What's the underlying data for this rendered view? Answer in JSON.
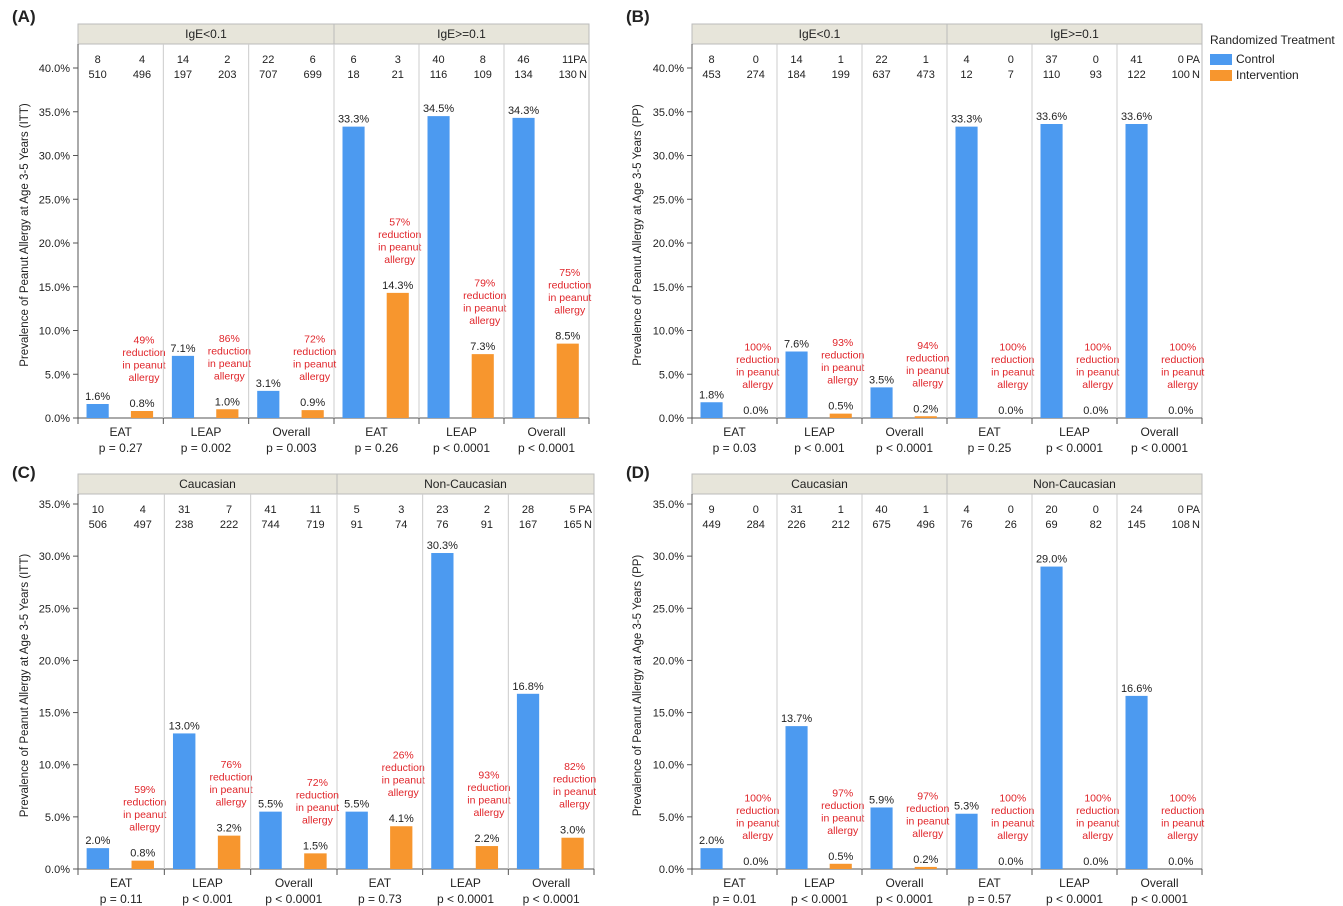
{
  "colors": {
    "control": "#4c9af0",
    "intervention": "#f7962e",
    "reduction_text": "#e0252a",
    "header_fill": "#e7e5da",
    "axis": "#555555",
    "divider": "#cccccc"
  },
  "legend": {
    "title": "Randomized Treatment",
    "items": [
      {
        "label": "Control",
        "color": "#4c9af0"
      },
      {
        "label": "Intervention",
        "color": "#f7962e"
      }
    ]
  },
  "chart_data": [
    {
      "panel": "(A)",
      "type": "bar",
      "ylabel": "Prevalence of Peanut Allergy at Age 3-5 Years (ITT)",
      "ylim": [
        0,
        40
      ],
      "yticks": [
        "0.0%",
        "5.0%",
        "10.0%",
        "15.0%",
        "20.0%",
        "25.0%",
        "30.0%",
        "35.0%",
        "40.0%"
      ],
      "count_labels": [
        "PA",
        "N"
      ],
      "groups": [
        {
          "header": "IgE<0.1",
          "subgroups": [
            {
              "name": "EAT",
              "p": "p = 0.27",
              "control": 1.6,
              "intervention": 0.8,
              "control_label": "1.6%",
              "intervention_label": "0.8%",
              "pa": [
                "8",
                "4"
              ],
              "n": [
                "510",
                "496"
              ],
              "reduction": [
                "49%",
                "reduction",
                "in peanut",
                "allergy"
              ]
            },
            {
              "name": "LEAP",
              "p": "p = 0.002",
              "control": 7.1,
              "intervention": 1.0,
              "control_label": "7.1%",
              "intervention_label": "1.0%",
              "pa": [
                "14",
                "2"
              ],
              "n": [
                "197",
                "203"
              ],
              "reduction": [
                "86%",
                "reduction",
                "in peanut",
                "allergy"
              ]
            },
            {
              "name": "Overall",
              "p": "p = 0.003",
              "control": 3.1,
              "intervention": 0.9,
              "control_label": "3.1%",
              "intervention_label": "0.9%",
              "pa": [
                "22",
                "6"
              ],
              "n": [
                "707",
                "699"
              ],
              "reduction": [
                "72%",
                "reduction",
                "in peanut",
                "allergy"
              ]
            }
          ]
        },
        {
          "header": "IgE>=0.1",
          "subgroups": [
            {
              "name": "EAT",
              "p": "p = 0.26",
              "control": 33.3,
              "intervention": 14.3,
              "control_label": "33.3%",
              "intervention_label": "14.3%",
              "pa": [
                "6",
                "3"
              ],
              "n": [
                "18",
                "21"
              ],
              "reduction": [
                "57%",
                "reduction",
                "in peanut",
                "allergy"
              ]
            },
            {
              "name": "LEAP",
              "p": "p < 0.0001",
              "control": 34.5,
              "intervention": 7.3,
              "control_label": "34.5%",
              "intervention_label": "7.3%",
              "pa": [
                "40",
                "8"
              ],
              "n": [
                "116",
                "109"
              ],
              "reduction": [
                "79%",
                "reduction",
                "in peanut",
                "allergy"
              ]
            },
            {
              "name": "Overall",
              "p": "p < 0.0001",
              "control": 34.3,
              "intervention": 8.5,
              "control_label": "34.3%",
              "intervention_label": "8.5%",
              "pa": [
                "46",
                "11"
              ],
              "n": [
                "134",
                "130"
              ],
              "reduction": [
                "75%",
                "reduction",
                "in peanut",
                "allergy"
              ]
            }
          ]
        }
      ]
    },
    {
      "panel": "(B)",
      "type": "bar",
      "ylabel": "Prevalence of Peanut Allergy at Age 3-5 Years (PP)",
      "ylim": [
        0,
        40
      ],
      "yticks": [
        "0.0%",
        "5.0%",
        "10.0%",
        "15.0%",
        "20.0%",
        "25.0%",
        "30.0%",
        "35.0%",
        "40.0%"
      ],
      "count_labels": [
        "PA",
        "N"
      ],
      "groups": [
        {
          "header": "IgE<0.1",
          "subgroups": [
            {
              "name": "EAT",
              "p": "p = 0.03",
              "control": 1.8,
              "intervention": 0.0,
              "control_label": "1.8%",
              "intervention_label": "0.0%",
              "pa": [
                "8",
                "0"
              ],
              "n": [
                "453",
                "274"
              ],
              "reduction": [
                "100%",
                "reduction",
                "in peanut",
                "allergy"
              ]
            },
            {
              "name": "LEAP",
              "p": "p < 0.001",
              "control": 7.6,
              "intervention": 0.5,
              "control_label": "7.6%",
              "intervention_label": "0.5%",
              "pa": [
                "14",
                "1"
              ],
              "n": [
                "184",
                "199"
              ],
              "reduction": [
                "93%",
                "reduction",
                "in peanut",
                "allergy"
              ]
            },
            {
              "name": "Overall",
              "p": "p < 0.0001",
              "control": 3.5,
              "intervention": 0.2,
              "control_label": "3.5%",
              "intervention_label": "0.2%",
              "pa": [
                "22",
                "1"
              ],
              "n": [
                "637",
                "473"
              ],
              "reduction": [
                "94%",
                "reduction",
                "in peanut",
                "allergy"
              ]
            }
          ]
        },
        {
          "header": "IgE>=0.1",
          "subgroups": [
            {
              "name": "EAT",
              "p": "p = 0.25",
              "control": 33.3,
              "intervention": 0.0,
              "control_label": "33.3%",
              "intervention_label": "0.0%",
              "pa": [
                "4",
                "0"
              ],
              "n": [
                "12",
                "7"
              ],
              "reduction": [
                "100%",
                "reduction",
                "in peanut",
                "allergy"
              ]
            },
            {
              "name": "LEAP",
              "p": "p < 0.0001",
              "control": 33.6,
              "intervention": 0.0,
              "control_label": "33.6%",
              "intervention_label": "0.0%",
              "pa": [
                "37",
                "0"
              ],
              "n": [
                "110",
                "93"
              ],
              "reduction": [
                "100%",
                "reduction",
                "in peanut",
                "allergy"
              ]
            },
            {
              "name": "Overall",
              "p": "p < 0.0001",
              "control": 33.6,
              "intervention": 0.0,
              "control_label": "33.6%",
              "intervention_label": "0.0%",
              "pa": [
                "41",
                "0"
              ],
              "n": [
                "122",
                "100"
              ],
              "reduction": [
                "100%",
                "reduction",
                "in peanut",
                "allergy"
              ]
            }
          ]
        }
      ]
    },
    {
      "panel": "(C)",
      "type": "bar",
      "ylabel": "Prevalence of Peanut Allergy at Age 3-5 Years (ITT)",
      "ylim": [
        0,
        35
      ],
      "yticks": [
        "0.0%",
        "5.0%",
        "10.0%",
        "15.0%",
        "20.0%",
        "25.0%",
        "30.0%",
        "35.0%"
      ],
      "count_labels": [
        "PA",
        "N"
      ],
      "groups": [
        {
          "header": "Caucasian",
          "subgroups": [
            {
              "name": "EAT",
              "p": "p = 0.11",
              "control": 2.0,
              "intervention": 0.8,
              "control_label": "2.0%",
              "intervention_label": "0.8%",
              "pa": [
                "10",
                "4"
              ],
              "n": [
                "506",
                "497"
              ],
              "reduction": [
                "59%",
                "reduction",
                "in peanut",
                "allergy"
              ]
            },
            {
              "name": "LEAP",
              "p": "p < 0.001",
              "control": 13.0,
              "intervention": 3.2,
              "control_label": "13.0%",
              "intervention_label": "3.2%",
              "pa": [
                "31",
                "7"
              ],
              "n": [
                "238",
                "222"
              ],
              "reduction": [
                "76%",
                "reduction",
                "in peanut",
                "allergy"
              ]
            },
            {
              "name": "Overall",
              "p": "p < 0.0001",
              "control": 5.5,
              "intervention": 1.5,
              "control_label": "5.5%",
              "intervention_label": "1.5%",
              "pa": [
                "41",
                "11"
              ],
              "n": [
                "744",
                "719"
              ],
              "reduction": [
                "72%",
                "reduction",
                "in peanut",
                "allergy"
              ]
            }
          ]
        },
        {
          "header": "Non-Caucasian",
          "subgroups": [
            {
              "name": "EAT",
              "p": "p = 0.73",
              "control": 5.5,
              "intervention": 4.1,
              "control_label": "5.5%",
              "intervention_label": "4.1%",
              "pa": [
                "5",
                "3"
              ],
              "n": [
                "91",
                "74"
              ],
              "reduction": [
                "26%",
                "reduction",
                "in peanut",
                "allergy"
              ]
            },
            {
              "name": "LEAP",
              "p": "p < 0.0001",
              "control": 30.3,
              "intervention": 2.2,
              "control_label": "30.3%",
              "intervention_label": "2.2%",
              "pa": [
                "23",
                "2"
              ],
              "n": [
                "76",
                "91"
              ],
              "reduction": [
                "93%",
                "reduction",
                "in peanut",
                "allergy"
              ]
            },
            {
              "name": "Overall",
              "p": "p < 0.0001",
              "control": 16.8,
              "intervention": 3.0,
              "control_label": "16.8%",
              "intervention_label": "3.0%",
              "pa": [
                "28",
                "5"
              ],
              "n": [
                "167",
                "165"
              ],
              "reduction": [
                "82%",
                "reduction",
                "in peanut",
                "allergy"
              ]
            }
          ]
        }
      ]
    },
    {
      "panel": "(D)",
      "type": "bar",
      "ylabel": "Prevalence of Peanut Allergy at Age 3-5 Years (PP)",
      "ylim": [
        0,
        35
      ],
      "yticks": [
        "0.0%",
        "5.0%",
        "10.0%",
        "15.0%",
        "20.0%",
        "25.0%",
        "30.0%",
        "35.0%"
      ],
      "count_labels": [
        "PA",
        "N"
      ],
      "groups": [
        {
          "header": "Caucasian",
          "subgroups": [
            {
              "name": "EAT",
              "p": "p = 0.01",
              "control": 2.0,
              "intervention": 0.0,
              "control_label": "2.0%",
              "intervention_label": "0.0%",
              "pa": [
                "9",
                "0"
              ],
              "n": [
                "449",
                "284"
              ],
              "reduction": [
                "100%",
                "reduction",
                "in peanut",
                "allergy"
              ]
            },
            {
              "name": "LEAP",
              "p": "p < 0.0001",
              "control": 13.7,
              "intervention": 0.5,
              "control_label": "13.7%",
              "intervention_label": "0.5%",
              "pa": [
                "31",
                "1"
              ],
              "n": [
                "226",
                "212"
              ],
              "reduction": [
                "97%",
                "reduction",
                "in peanut",
                "allergy"
              ]
            },
            {
              "name": "Overall",
              "p": "p < 0.0001",
              "control": 5.9,
              "intervention": 0.2,
              "control_label": "5.9%",
              "intervention_label": "0.2%",
              "pa": [
                "40",
                "1"
              ],
              "n": [
                "675",
                "496"
              ],
              "reduction": [
                "97%",
                "reduction",
                "in peanut",
                "allergy"
              ]
            }
          ]
        },
        {
          "header": "Non-Caucasian",
          "subgroups": [
            {
              "name": "EAT",
              "p": "p = 0.57",
              "control": 5.3,
              "intervention": 0.0,
              "control_label": "5.3%",
              "intervention_label": "0.0%",
              "pa": [
                "4",
                "0"
              ],
              "n": [
                "76",
                "26"
              ],
              "reduction": [
                "100%",
                "reduction",
                "in peanut",
                "allergy"
              ]
            },
            {
              "name": "LEAP",
              "p": "p < 0.0001",
              "control": 29.0,
              "intervention": 0.0,
              "control_label": "29.0%",
              "intervention_label": "0.0%",
              "pa": [
                "20",
                "0"
              ],
              "n": [
                "69",
                "82"
              ],
              "reduction": [
                "100%",
                "reduction",
                "in peanut",
                "allergy"
              ]
            },
            {
              "name": "Overall",
              "p": "p < 0.0001",
              "control": 16.6,
              "intervention": 0.0,
              "control_label": "16.6%",
              "intervention_label": "0.0%",
              "pa": [
                "24",
                "0"
              ],
              "n": [
                "145",
                "108"
              ],
              "reduction": [
                "100%",
                "reduction",
                "in peanut",
                "allergy"
              ]
            }
          ]
        }
      ]
    }
  ]
}
